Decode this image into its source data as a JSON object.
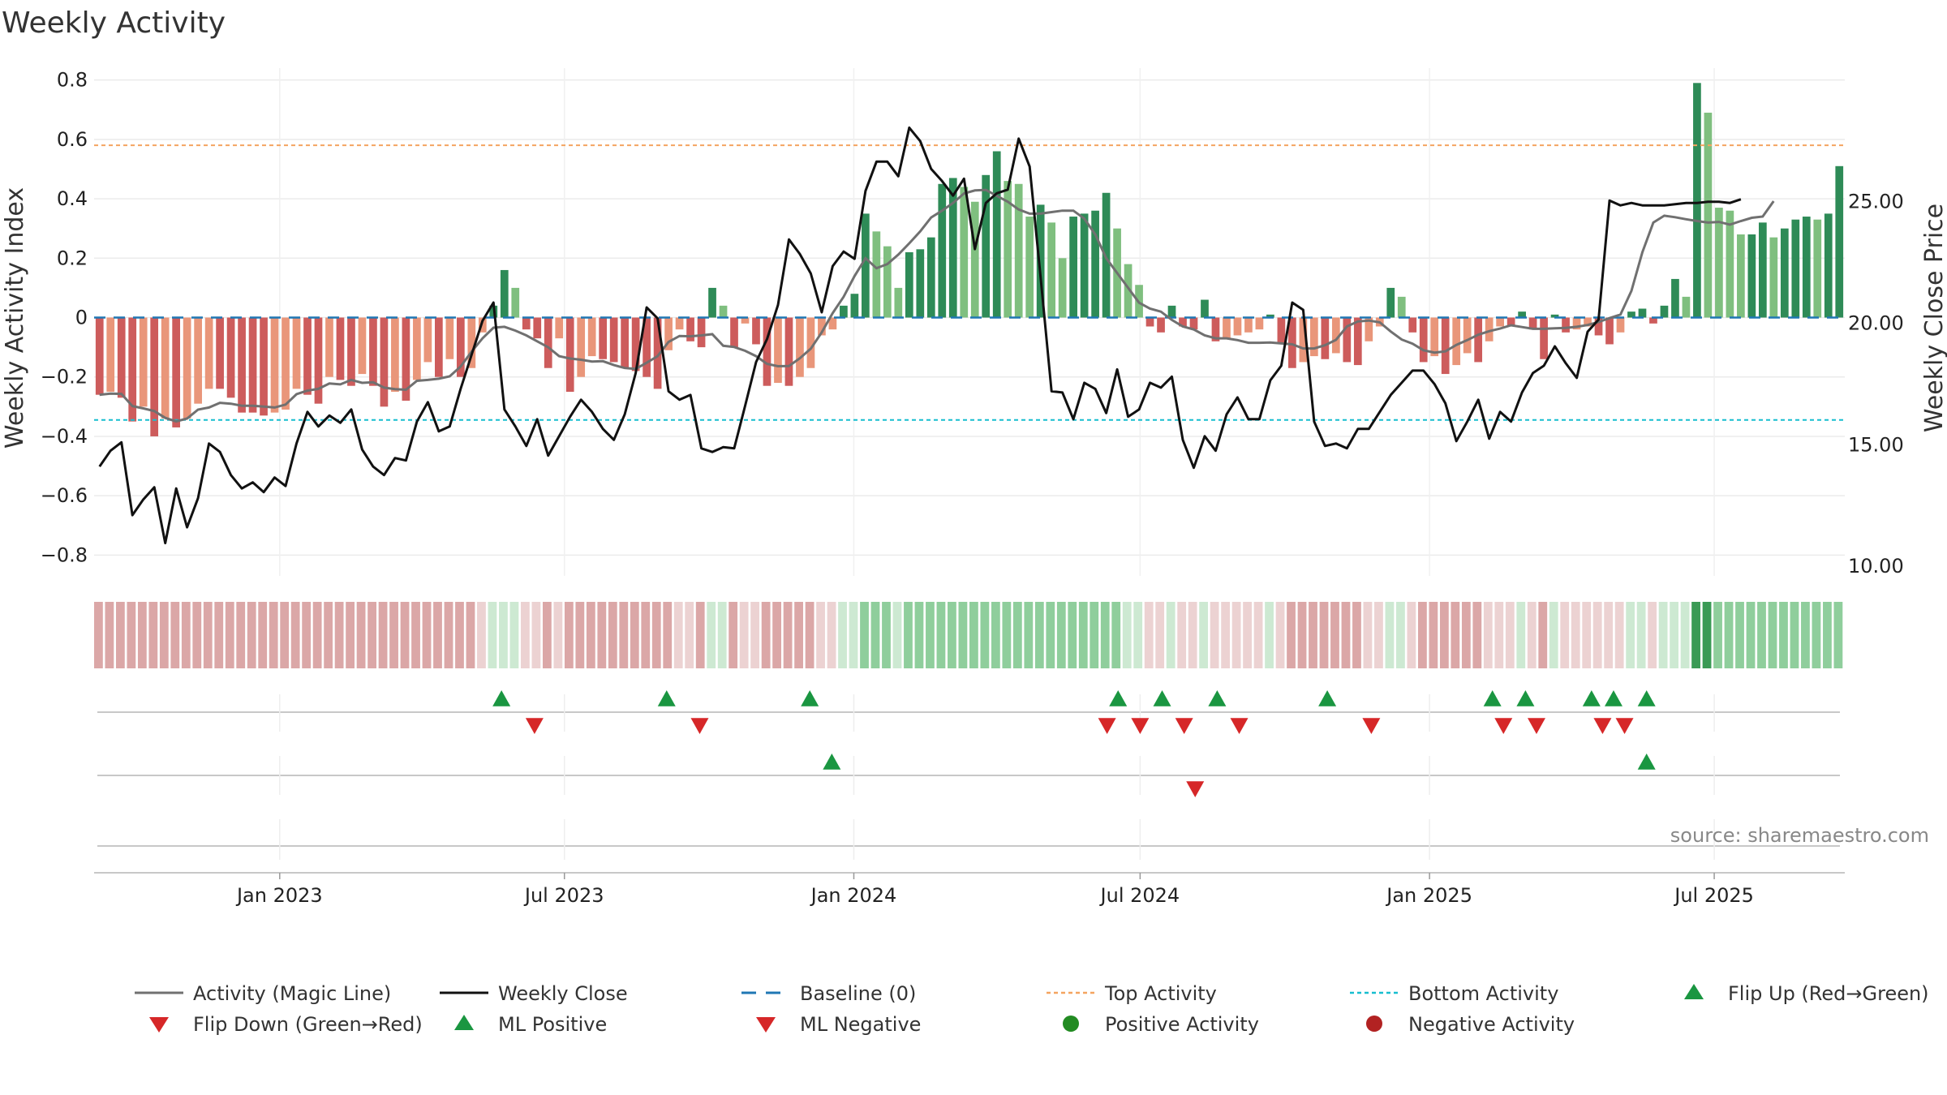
{
  "chart_data": {
    "type": "bar",
    "title": "Weekly Activity",
    "ylabel": "Weekly Activity Index",
    "y2label": "Weekly Close Price",
    "ylim": [
      -0.87,
      0.84
    ],
    "y2lim": [
      9.6,
      30.5
    ],
    "yticks": [
      0.8,
      0.6,
      0.4,
      0.2,
      0,
      -0.2,
      -0.4,
      -0.6,
      -0.8
    ],
    "ytick_labels": [
      "0.8",
      "0.6",
      "0.4",
      "0.2",
      "0",
      "−0.2",
      "−0.4",
      "−0.6",
      "−0.8"
    ],
    "y2ticks": [
      25,
      20,
      15,
      10
    ],
    "y2tick_labels": [
      "25.00",
      "20.00",
      "15.00",
      "10.00"
    ],
    "x_start": "2022-09-05",
    "x_end": "2025-09-22",
    "xticks": [
      "2023-01-01",
      "2023-07-01",
      "2024-01-01",
      "2024-07-01",
      "2025-01-01",
      "2025-07-01"
    ],
    "xtick_labels": [
      "Jan 2023",
      "Jul 2023",
      "Jan 2024",
      "Jul 2024",
      "Jan 2025",
      "Jul 2025"
    ],
    "top_activity": 0.58,
    "bottom_activity": -0.345,
    "baseline": 0,
    "activity_index": [
      -0.26,
      -0.25,
      -0.27,
      -0.35,
      -0.3,
      -0.4,
      -0.34,
      -0.37,
      -0.34,
      -0.29,
      -0.24,
      -0.24,
      -0.27,
      -0.32,
      -0.32,
      -0.33,
      -0.32,
      -0.31,
      -0.24,
      -0.26,
      -0.29,
      -0.2,
      -0.21,
      -0.23,
      -0.19,
      -0.23,
      -0.3,
      -0.25,
      -0.28,
      -0.21,
      -0.15,
      -0.2,
      -0.14,
      -0.2,
      -0.17,
      -0.05,
      0.04,
      0.16,
      0.1,
      -0.04,
      -0.07,
      -0.17,
      -0.07,
      -0.25,
      -0.2,
      -0.13,
      -0.14,
      -0.15,
      -0.17,
      -0.18,
      -0.2,
      -0.24,
      -0.11,
      -0.04,
      -0.08,
      -0.1,
      0.1,
      0.04,
      -0.1,
      -0.02,
      -0.09,
      -0.23,
      -0.22,
      -0.23,
      -0.2,
      -0.17,
      -0.06,
      -0.04,
      0.04,
      0.08,
      0.35,
      0.29,
      0.24,
      0.1,
      0.22,
      0.23,
      0.27,
      0.45,
      0.47,
      0.44,
      0.39,
      0.48,
      0.56,
      0.46,
      0.45,
      0.34,
      0.38,
      0.32,
      0.2,
      0.34,
      0.35,
      0.36,
      0.42,
      0.3,
      0.18,
      0.11,
      -0.03,
      -0.05,
      0.04,
      -0.03,
      -0.04,
      0.06,
      -0.08,
      -0.07,
      -0.06,
      -0.05,
      -0.04,
      0.01,
      -0.09,
      -0.17,
      -0.15,
      -0.13,
      -0.14,
      -0.12,
      -0.15,
      -0.16,
      -0.08,
      -0.03,
      0.1,
      0.07,
      -0.05,
      -0.15,
      -0.13,
      -0.19,
      -0.16,
      -0.12,
      -0.15,
      -0.08,
      -0.03,
      -0.03,
      0.02,
      -0.04,
      -0.14,
      0.01,
      -0.05,
      -0.04,
      -0.03,
      -0.06,
      -0.09,
      -0.05,
      0.02,
      0.03,
      -0.02,
      0.04,
      0.13,
      0.07,
      0.79,
      0.69,
      0.37,
      0.36,
      0.28,
      0.28,
      0.32,
      0.27,
      0.3,
      0.33,
      0.34,
      0.33,
      0.35,
      0.51
    ],
    "activity_magic_line": [
      -0.26,
      -0.256,
      -0.257,
      -0.298,
      -0.306,
      -0.315,
      -0.338,
      -0.35,
      -0.34,
      -0.31,
      -0.303,
      -0.287,
      -0.29,
      -0.297,
      -0.297,
      -0.3,
      -0.303,
      -0.293,
      -0.258,
      -0.246,
      -0.24,
      -0.222,
      -0.225,
      -0.21,
      -0.22,
      -0.218,
      -0.236,
      -0.241,
      -0.243,
      -0.213,
      -0.21,
      -0.206,
      -0.198,
      -0.165,
      -0.115,
      -0.07,
      -0.034,
      -0.031,
      -0.044,
      -0.06,
      -0.08,
      -0.1,
      -0.13,
      -0.138,
      -0.142,
      -0.148,
      -0.147,
      -0.16,
      -0.17,
      -0.173,
      -0.152,
      -0.13,
      -0.082,
      -0.062,
      -0.063,
      -0.06,
      -0.056,
      -0.095,
      -0.099,
      -0.112,
      -0.13,
      -0.156,
      -0.164,
      -0.163,
      -0.137,
      -0.105,
      -0.05,
      0.015,
      0.07,
      0.14,
      0.2,
      0.166,
      0.18,
      0.212,
      0.25,
      0.29,
      0.337,
      0.36,
      0.386,
      0.418,
      0.428,
      0.43,
      0.41,
      0.39,
      0.364,
      0.35,
      0.35,
      0.355,
      0.36,
      0.36,
      0.333,
      0.28,
      0.2,
      0.15,
      0.1,
      0.05,
      0.03,
      0.02,
      -0.008,
      -0.03,
      -0.04,
      -0.06,
      -0.07,
      -0.07,
      -0.076,
      -0.085,
      -0.085,
      -0.084,
      -0.087,
      -0.09,
      -0.104,
      -0.104,
      -0.093,
      -0.075,
      -0.03,
      -0.013,
      -0.01,
      -0.016,
      -0.047,
      -0.074,
      -0.088,
      -0.11,
      -0.118,
      -0.114,
      -0.092,
      -0.076,
      -0.058,
      -0.046,
      -0.037,
      -0.026,
      -0.032,
      -0.038,
      -0.038,
      -0.036,
      -0.035,
      -0.031,
      -0.025,
      -0.015,
      -0.002,
      0.01,
      0.09,
      0.22,
      0.32,
      0.343,
      0.338,
      0.331,
      0.325,
      0.32,
      0.322,
      0.313,
      0.325,
      0.336,
      0.34,
      0.392
    ],
    "weekly_close": [
      14.1,
      14.75,
      15.1,
      12.1,
      12.75,
      13.25,
      10.95,
      13.2,
      11.6,
      12.8,
      15.05,
      14.7,
      13.75,
      13.2,
      13.45,
      13.05,
      13.65,
      13.3,
      15.05,
      16.35,
      15.75,
      16.2,
      15.9,
      16.45,
      14.8,
      14.1,
      13.75,
      14.45,
      14.35,
      15.95,
      16.75,
      15.55,
      15.75,
      17.3,
      18.7,
      20.1,
      20.85,
      16.45,
      15.75,
      14.95,
      16.05,
      14.55,
      15.35,
      16.15,
      16.85,
      16.35,
      15.65,
      15.2,
      16.25,
      17.95,
      20.65,
      20.2,
      17.2,
      16.85,
      17.05,
      14.85,
      14.7,
      14.9,
      14.85,
      16.6,
      18.4,
      19.35,
      20.75,
      23.45,
      22.85,
      22.05,
      20.45,
      22.35,
      22.95,
      22.65,
      25.45,
      26.65,
      26.65,
      26.05,
      28.05,
      27.5,
      26.35,
      25.85,
      25.25,
      25.95,
      23.05,
      24.95,
      25.35,
      25.5,
      27.6,
      26.45,
      21.9,
      17.2,
      17.15,
      16.05,
      17.55,
      17.3,
      16.3,
      18.1,
      16.15,
      16.45,
      17.55,
      17.35,
      17.8,
      15.2,
      14.05,
      15.35,
      14.75,
      16.25,
      16.95,
      16.05,
      16.05,
      17.65,
      18.25,
      20.85,
      20.55,
      15.95,
      14.95,
      15.05,
      14.85,
      15.65,
      15.65,
      16.35,
      17.05,
      17.55,
      18.05,
      18.05,
      17.5,
      16.7,
      15.15,
      15.95,
      16.85,
      15.25,
      16.35,
      15.95,
      17.15,
      17.95,
      18.25,
      19.05,
      18.35,
      17.75,
      19.65,
      20.15,
      25.05,
      24.85,
      24.95,
      24.85,
      24.85,
      24.85,
      24.9,
      24.95,
      24.95,
      25.0,
      25.0,
      24.95,
      25.1
    ],
    "flip_up": [
      "2023-05-22",
      "2023-09-04",
      "2023-12-04",
      "2024-06-17",
      "2024-07-15",
      "2024-08-19",
      "2024-10-28",
      "2025-02-10",
      "2025-03-03",
      "2025-04-14",
      "2025-04-28",
      "2025-05-19"
    ],
    "flip_down": [
      "2023-06-12",
      "2023-09-25",
      "2024-06-10",
      "2024-07-01",
      "2024-07-29",
      "2024-09-02",
      "2024-11-25",
      "2025-02-17",
      "2025-03-10",
      "2025-04-21",
      "2025-05-05"
    ],
    "ml_positive": [
      "2023-12-18",
      "2025-05-19"
    ],
    "ml_negative": [
      "2024-08-05"
    ],
    "positive_activity": [],
    "negative_activity": [],
    "legend": [
      "Activity (Magic Line)",
      "Weekly Close",
      "Baseline (0)",
      "Top Activity",
      "Bottom Activity",
      "Flip Up (Red→Green)",
      "Flip Down (Green→Red)",
      "ML Positive",
      "ML Negative",
      "Positive Activity",
      "Negative Activity"
    ],
    "source": "source: sharemaestro.com"
  },
  "colors": {
    "pos_strong": "#2e8b57",
    "pos_light": "#7fbf7f",
    "neg_strong": "#cd5c5c",
    "neg_light": "#e9967a",
    "magic_line": "#707070",
    "close_line": "#111111",
    "baseline": "#1f77b4",
    "top": "#f4a460",
    "bottom": "#17becf",
    "up_marker": "#1a9641",
    "down_marker": "#d62728",
    "pos_dot": "#228b22",
    "neg_dot": "#b22222",
    "heat_pos_strong": "#3a9a55",
    "heat_pos": "#8fce9c",
    "heat_pos_light": "#cde9d2",
    "heat_neg": "#dba7a7",
    "heat_neg_light": "#ecd2d2"
  }
}
